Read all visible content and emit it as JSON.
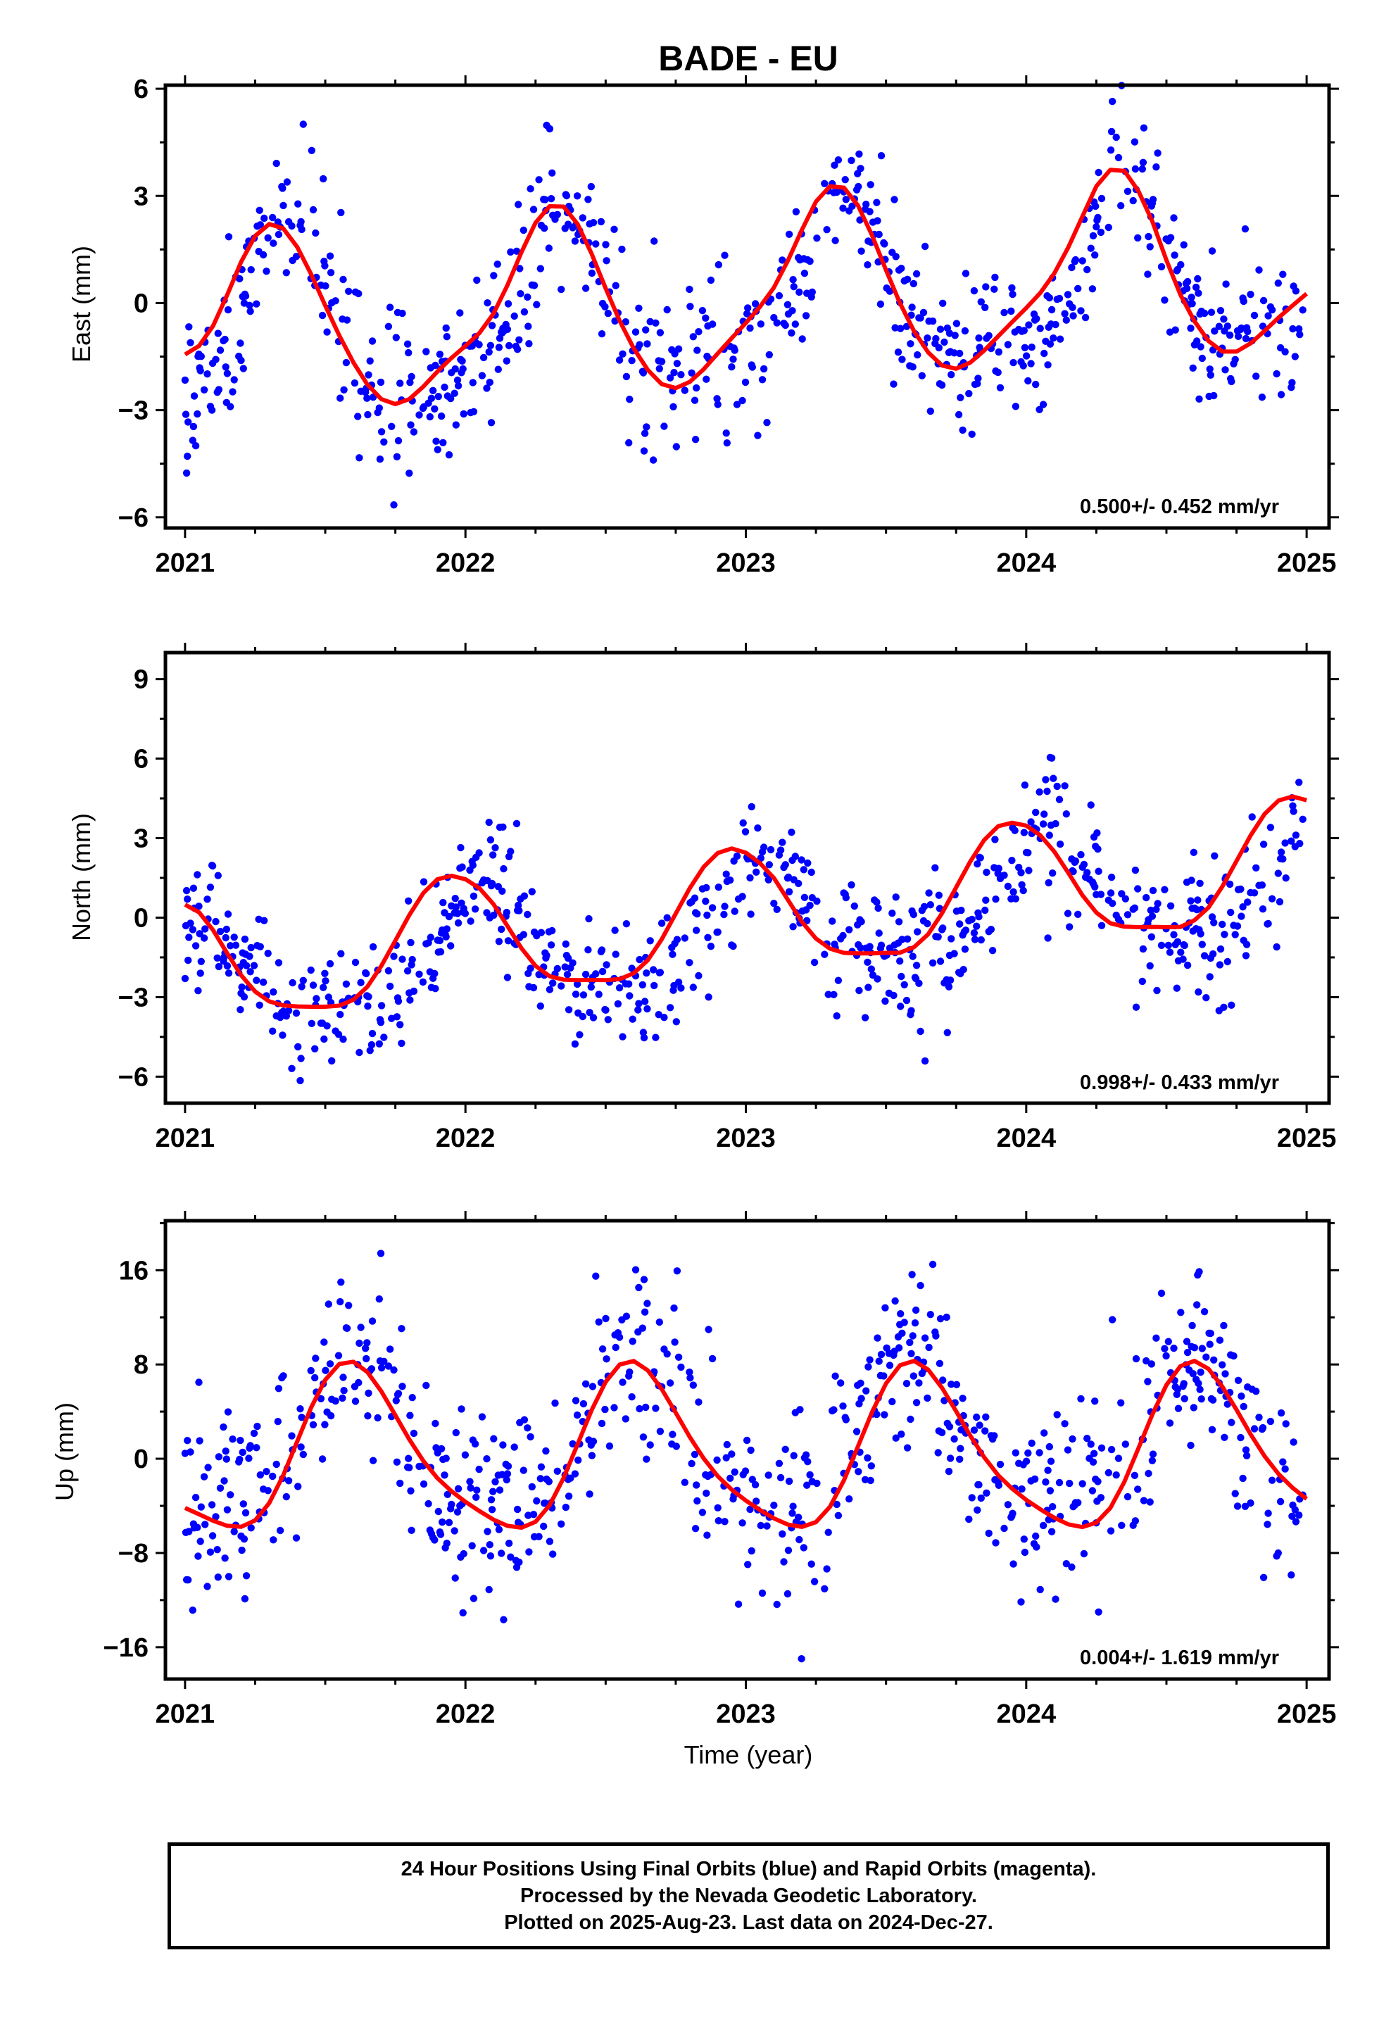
{
  "chart_data": {
    "type": "scatter",
    "title": "BADE - EU",
    "xlabel": "Time (year)",
    "colors": {
      "points": "#0000ff",
      "fit": "#ff0000"
    },
    "panels": [
      {
        "name": "east",
        "ylabel": "East (mm)",
        "xlim": [
          2020.93,
          2025.08
        ],
        "ylim": [
          -6.3,
          6.1
        ],
        "xticks": [
          2021,
          2022,
          2023,
          2024,
          2025
        ],
        "yticks": [
          -6,
          -3,
          0,
          3,
          6
        ],
        "ytick_labels": [
          "−6",
          "−3",
          "0",
          "3",
          "6"
        ],
        "velocity_label": "0.500+/- 0.452 mm/yr",
        "fit": {
          "offset": -0.1,
          "trend": 0.5,
          "trend_ref": 2023.0,
          "annual_amp": 2.3,
          "annual_peak": 2021.35,
          "semi_amp": 0.9,
          "semi_peak": 2021.35,
          "noise_sd": 1.1
        },
        "fit_x": [
          2021.0,
          2021.05,
          2021.1,
          2021.15,
          2021.2,
          2021.25,
          2021.3,
          2021.35,
          2021.4,
          2021.45,
          2021.5,
          2021.55,
          2021.6,
          2021.65,
          2021.7,
          2021.75,
          2021.8,
          2021.85,
          2021.9,
          2021.95,
          2022.0,
          2022.05,
          2022.1,
          2022.15,
          2022.2,
          2022.25,
          2022.3,
          2022.35,
          2022.4,
          2022.45,
          2022.5,
          2022.55,
          2022.6,
          2022.65,
          2022.7,
          2022.75,
          2022.8,
          2022.85,
          2022.9,
          2022.95,
          2023.0,
          2023.05,
          2023.1,
          2023.15,
          2023.2,
          2023.25,
          2023.3,
          2023.35,
          2023.4,
          2023.45,
          2023.5,
          2023.55,
          2023.6,
          2023.65,
          2023.7,
          2023.75,
          2023.8,
          2023.85,
          2023.9,
          2023.95,
          2024.0,
          2024.05,
          2024.1,
          2024.15,
          2024.2,
          2024.25,
          2024.3,
          2024.35,
          2024.4,
          2024.45,
          2024.5,
          2024.55,
          2024.6,
          2024.65,
          2024.7,
          2024.75,
          2024.8,
          2024.85,
          2024.9,
          2024.95,
          2025.0
        ],
        "fit_y": [
          -1.44,
          -1.2,
          -0.64,
          0.22,
          1.15,
          1.88,
          2.21,
          2.09,
          1.57,
          0.8,
          -0.07,
          -0.91,
          -1.66,
          -2.28,
          -2.69,
          -2.83,
          -2.69,
          -2.34,
          -1.92,
          -1.54,
          -1.2,
          -0.84,
          -0.3,
          0.5,
          1.43,
          2.25,
          2.71,
          2.7,
          2.21,
          1.38,
          0.41,
          -0.5,
          -1.27,
          -1.87,
          -2.27,
          -2.38,
          -2.21,
          -1.85,
          -1.41,
          -0.98,
          -0.56,
          -0.11,
          0.43,
          1.19,
          2.05,
          2.84,
          3.27,
          3.23,
          2.73,
          1.9,
          0.92,
          -0.01,
          -0.79,
          -1.38,
          -1.75,
          -1.84,
          -1.67,
          -1.33,
          -0.93,
          -0.53,
          -0.14,
          0.28,
          0.83,
          1.56,
          2.42,
          3.27,
          3.73,
          3.7,
          3.14,
          2.28,
          1.2,
          0.23,
          -0.51,
          -1.06,
          -1.36,
          -1.36,
          -1.13,
          -0.78,
          -0.41,
          -0.07,
          0.26
        ]
      },
      {
        "name": "north",
        "ylabel": "North (mm)",
        "xlim": [
          2020.93,
          2025.08
        ],
        "ylim": [
          -7.0,
          10.0
        ],
        "xticks": [
          2021,
          2022,
          2023,
          2024,
          2025
        ],
        "yticks": [
          -6,
          -3,
          0,
          3,
          6,
          9
        ],
        "ytick_labels": [
          "−6",
          "−3",
          "0",
          "3",
          "6",
          "9"
        ],
        "velocity_label": "0.998+/- 0.433 mm/yr",
        "fit": {
          "offset": -0.5,
          "trend": 1.0,
          "trend_ref": 2023.0,
          "annual_amp": 2.0,
          "annual_peak": 2021.05,
          "semi_amp": 0.7,
          "semi_peak": 2021.05,
          "noise_sd": 1.2
        },
        "fit_x": [
          2021.0,
          2021.05,
          2021.1,
          2021.15,
          2021.2,
          2021.25,
          2021.3,
          2021.35,
          2021.4,
          2021.45,
          2021.5,
          2021.55,
          2021.6,
          2021.65,
          2021.7,
          2021.75,
          2021.8,
          2021.85,
          2021.9,
          2021.95,
          2022.0,
          2022.05,
          2022.1,
          2022.15,
          2022.2,
          2022.25,
          2022.3,
          2022.35,
          2022.4,
          2022.45,
          2022.5,
          2022.55,
          2022.6,
          2022.65,
          2022.7,
          2022.75,
          2022.8,
          2022.85,
          2022.9,
          2022.95,
          2023.0,
          2023.05,
          2023.1,
          2023.15,
          2023.2,
          2023.25,
          2023.3,
          2023.35,
          2023.4,
          2023.45,
          2023.5,
          2023.55,
          2023.6,
          2023.65,
          2023.7,
          2023.75,
          2023.8,
          2023.85,
          2023.9,
          2023.95,
          2024.0,
          2024.05,
          2024.1,
          2024.15,
          2024.2,
          2024.25,
          2024.3,
          2024.35,
          2024.4,
          2024.45,
          2024.5,
          2024.55,
          2024.6,
          2024.65,
          2024.7,
          2024.75,
          2024.8,
          2024.85,
          2024.9,
          2024.95,
          2025.0
        ],
        "fit_y": [
          0.49,
          0.2,
          -0.47,
          -1.34,
          -2.17,
          -2.79,
          -3.16,
          -3.31,
          -3.35,
          -3.36,
          -3.36,
          -3.32,
          -3.1,
          -2.61,
          -1.82,
          -0.87,
          0.1,
          0.93,
          1.45,
          1.58,
          1.45,
          1.11,
          0.51,
          -0.32,
          -1.16,
          -1.82,
          -2.21,
          -2.34,
          -2.36,
          -2.35,
          -2.36,
          -2.32,
          -2.1,
          -1.61,
          -0.82,
          0.15,
          1.11,
          1.92,
          2.44,
          2.61,
          2.45,
          2.06,
          1.5,
          0.67,
          -0.16,
          -0.79,
          -1.17,
          -1.33,
          -1.35,
          -1.35,
          -1.33,
          -1.32,
          -1.11,
          -0.63,
          0.17,
          1.14,
          2.11,
          2.93,
          3.45,
          3.58,
          3.47,
          3.11,
          2.49,
          1.69,
          0.85,
          0.19,
          -0.21,
          -0.34,
          -0.36,
          -0.35,
          -0.36,
          -0.35,
          -0.1,
          0.38,
          1.18,
          2.14,
          3.1,
          3.91,
          4.42,
          4.57,
          4.43
        ]
      },
      {
        "name": "up",
        "ylabel": "Up (mm)",
        "xlim": [
          2020.93,
          2025.08
        ],
        "ylim": [
          -18.7,
          20.2
        ],
        "xticks": [
          2021,
          2022,
          2023,
          2024,
          2025
        ],
        "yticks": [
          -16,
          -8,
          0,
          8,
          16
        ],
        "ytick_labels": [
          "−16",
          "−8",
          "0",
          "8",
          "16"
        ],
        "velocity_label": "0.004+/- 1.619 mm/yr",
        "fit": {
          "offset": 1.0,
          "trend": 0.0,
          "trend_ref": 2023.0,
          "annual_amp": 6.3,
          "annual_peak": 2021.6,
          "semi_amp": 1.5,
          "semi_peak": 2021.6,
          "noise_sd": 4.0
        },
        "fit_x": [
          2021.0,
          2021.05,
          2021.1,
          2021.15,
          2021.2,
          2021.25,
          2021.3,
          2021.35,
          2021.4,
          2021.45,
          2021.5,
          2021.55,
          2021.6,
          2021.65,
          2021.7,
          2021.75,
          2021.8,
          2021.85,
          2021.9,
          2021.95,
          2022.0,
          2022.05,
          2022.1,
          2022.15,
          2022.2,
          2022.25,
          2022.3,
          2022.35,
          2022.4,
          2022.45,
          2022.5,
          2022.55,
          2022.6,
          2022.65,
          2022.7,
          2022.75,
          2022.8,
          2022.85,
          2022.9,
          2022.95,
          2023.0,
          2023.05,
          2023.1,
          2023.15,
          2023.2,
          2023.25,
          2023.3,
          2023.35,
          2023.4,
          2023.45,
          2023.5,
          2023.55,
          2023.6,
          2023.65,
          2023.7,
          2023.75,
          2023.8,
          2023.85,
          2023.9,
          2023.95,
          2024.0,
          2024.05,
          2024.1,
          2024.15,
          2024.2,
          2024.25,
          2024.3,
          2024.35,
          2024.4,
          2024.45,
          2024.5,
          2024.55,
          2024.6,
          2024.65,
          2024.7,
          2024.75,
          2024.8,
          2024.85,
          2024.9,
          2024.95,
          2025.0
        ],
        "fit_y": [
          -4.18,
          -4.72,
          -5.27,
          -5.69,
          -5.78,
          -5.23,
          -3.77,
          -1.42,
          1.47,
          4.36,
          6.69,
          8.04,
          8.23,
          7.36,
          5.72,
          3.69,
          1.63,
          -0.19,
          -1.65,
          -2.76,
          -3.66,
          -4.45,
          -5.17,
          -5.7,
          -5.85,
          -5.35,
          -3.95,
          -1.64,
          1.23,
          4.12,
          6.53,
          7.99,
          8.29,
          7.5,
          5.91,
          3.91,
          1.85,
          0.01,
          -1.49,
          -2.63,
          -3.55,
          -4.35,
          -5.06,
          -5.59,
          -5.79,
          -5.38,
          -4.08,
          -1.83,
          1.05,
          3.94,
          6.39,
          7.93,
          8.3,
          7.57,
          6.01,
          4.03,
          1.97,
          0.12,
          -1.4,
          -2.55,
          -3.49,
          -4.29,
          -5.01,
          -5.57,
          -5.8,
          -5.43,
          -4.18,
          -1.97,
          0.87,
          3.77,
          6.26,
          7.86,
          8.3,
          7.63,
          6.1,
          4.15,
          2.08,
          0.22,
          -1.3,
          -2.47,
          -3.41
        ]
      }
    ],
    "series": [
      {
        "name": "Final Orbits (blue)",
        "kind": "scatter"
      }
    ],
    "last_data": 2024.99
  },
  "footer": {
    "line1": "24 Hour Positions Using Final Orbits (blue) and Rapid Orbits (magenta).",
    "line2": "Processed by the Nevada Geodetic Laboratory.",
    "line3": "Plotted on 2025-Aug-23. Last data on 2024-Dec-27."
  }
}
